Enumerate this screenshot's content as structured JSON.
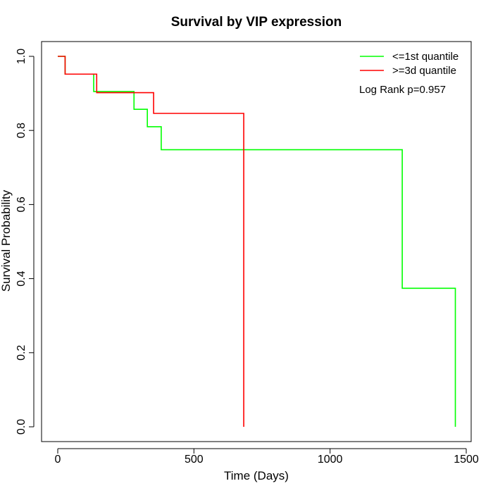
{
  "chart_data": {
    "type": "line",
    "title": "Survival by VIP expression",
    "xlabel": "Time (Days)",
    "ylabel": "Survival Probability",
    "xlim": [
      0,
      1500
    ],
    "ylim": [
      0,
      1
    ],
    "x_ticks": [
      0,
      500,
      1000,
      1500
    ],
    "y_ticks": [
      0.0,
      0.2,
      0.4,
      0.6,
      0.8,
      1.0
    ],
    "x_tick_labels": [
      "0",
      "500",
      "1000",
      "1500"
    ],
    "y_tick_labels": [
      "0.0",
      "0.2",
      "0.4",
      "0.6",
      "0.8",
      "1.0"
    ],
    "grid": false,
    "legend_position": "top-right",
    "annotation": "Log Rank p=0.957",
    "series": [
      {
        "name": "<=1st quantile",
        "color": "#00ff00",
        "step": true,
        "x": [
          0,
          27,
          132,
          280,
          329,
          380,
          1265,
          1460
        ],
        "y": [
          1.0,
          0.952,
          0.905,
          0.857,
          0.81,
          0.748,
          0.374,
          0.0
        ]
      },
      {
        "name": ">=3d quantile",
        "color": "#ff0000",
        "step": true,
        "x": [
          0,
          27,
          143,
          352,
          683
        ],
        "y": [
          1.0,
          0.952,
          0.902,
          0.846,
          0.0
        ]
      }
    ]
  }
}
